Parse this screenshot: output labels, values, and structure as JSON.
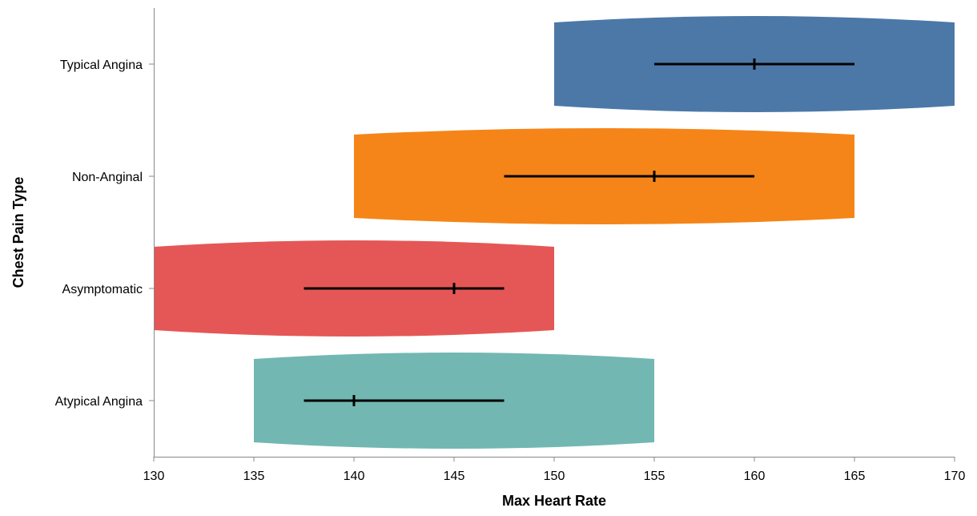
{
  "chart_data": {
    "type": "violin",
    "orientation": "horizontal",
    "xlabel": "Max Heart Rate",
    "ylabel": "Chest Pain Type",
    "xlim": [
      130,
      170
    ],
    "x_ticks": [
      130,
      135,
      140,
      145,
      150,
      155,
      160,
      165,
      170
    ],
    "grid": false,
    "categories": [
      "Typical Angina",
      "Non-Anginal",
      "Asymptomatic",
      "Atypical Angina"
    ],
    "series": [
      {
        "category": "Typical Angina",
        "color": "#4c78a8",
        "min": 150,
        "max": 170,
        "q1": 155,
        "median": 160,
        "q3": 165
      },
      {
        "category": "Non-Anginal",
        "color": "#f58518",
        "min": 140,
        "max": 165,
        "q1": 147.5,
        "median": 155,
        "q3": 160
      },
      {
        "category": "Asymptomatic",
        "color": "#e45756",
        "min": 130,
        "max": 150,
        "q1": 137.5,
        "median": 145,
        "q3": 147.5
      },
      {
        "category": "Atypical Angina",
        "color": "#72b7b2",
        "min": 135,
        "max": 155,
        "q1": 137.5,
        "median": 140,
        "q3": 147.5
      }
    ]
  }
}
